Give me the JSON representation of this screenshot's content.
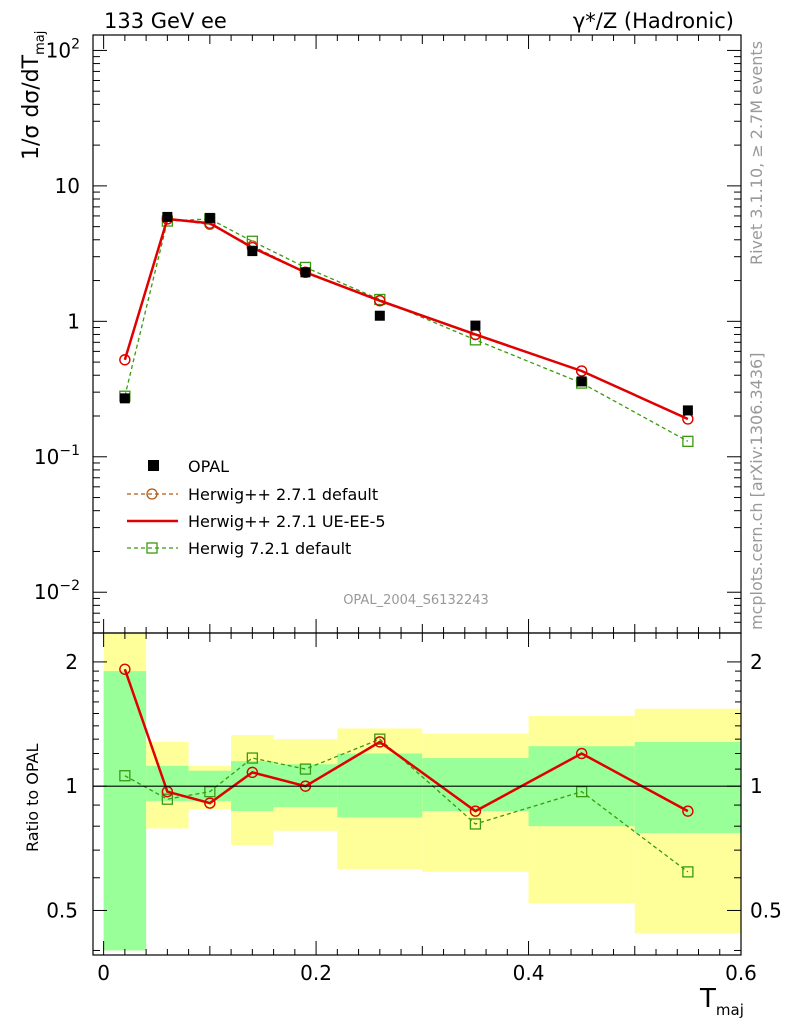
{
  "header": {
    "left": "133 GeV ee",
    "right": "γ*/Z (Hadronic)"
  },
  "side_text": {
    "top": "Rivet 3.1.10, ≥ 2.7M events",
    "bottom": "mcplots.cern.ch [arXiv:1306.3436]"
  },
  "watermark": "OPAL_2004_S6132243",
  "chart_data": {
    "type": "line",
    "x_label_main": "T",
    "x_label_sub": "maj",
    "y_label_main": "1/σ dσ/dT",
    "y_label_sub": "maj",
    "ratio_ylabel": "Ratio to OPAL",
    "xlim": [
      -0.01,
      0.6
    ],
    "x_ticks": [
      "0",
      "0.2",
      "0.4",
      "0.6"
    ],
    "main_yscale": "log",
    "main_ylim": [
      0.005,
      130
    ],
    "main_y_ticks": [
      "10",
      "1"
    ],
    "main_y_ticks_exp": [
      {
        "base": "10",
        "exp": "2"
      },
      {
        "base": "10",
        "exp": "−1"
      },
      {
        "base": "10",
        "exp": "−2"
      }
    ],
    "ratio_yscale": "log",
    "ratio_ylim": [
      0.39,
      2.35
    ],
    "ratio_y_ticks": [
      "2",
      "1",
      "0.5"
    ],
    "legend_position": "lower-left",
    "bins": [
      {
        "lo": 0.0,
        "hi": 0.04
      },
      {
        "lo": 0.04,
        "hi": 0.08
      },
      {
        "lo": 0.08,
        "hi": 0.12
      },
      {
        "lo": 0.12,
        "hi": 0.16
      },
      {
        "lo": 0.16,
        "hi": 0.22
      },
      {
        "lo": 0.22,
        "hi": 0.3
      },
      {
        "lo": 0.3,
        "hi": 0.4
      },
      {
        "lo": 0.4,
        "hi": 0.5
      },
      {
        "lo": 0.5,
        "hi": 0.6
      }
    ],
    "x": [
      0.02,
      0.06,
      0.1,
      0.14,
      0.19,
      0.26,
      0.35,
      0.45,
      0.55
    ],
    "series": [
      {
        "name": "OPAL",
        "style": "data",
        "color": "#000000",
        "values": [
          0.27,
          5.9,
          5.8,
          3.3,
          2.3,
          1.1,
          0.93,
          0.36,
          0.22
        ]
      },
      {
        "name": "Herwig++ 2.7.1 default",
        "style": "dashed-circle",
        "color": "#b05a14",
        "values": [
          0.52,
          5.7,
          5.2,
          3.6,
          2.3,
          1.42,
          0.8,
          0.43,
          0.19
        ],
        "ratio": [
          1.92,
          0.97,
          0.91,
          1.08,
          1.0,
          1.28,
          0.87,
          1.2,
          0.87
        ]
      },
      {
        "name": "Herwig++ 2.7.1 UE-EE-5",
        "style": "solid",
        "color": "#e00000",
        "values": [
          0.52,
          5.7,
          5.3,
          3.5,
          2.3,
          1.42,
          0.8,
          0.43,
          0.19
        ],
        "ratio": [
          1.92,
          0.97,
          0.91,
          1.08,
          1.0,
          1.28,
          0.87,
          1.2,
          0.87
        ]
      },
      {
        "name": "Herwig 7.2.1 default",
        "style": "dashed-square",
        "color": "#3a9a10",
        "values": [
          0.28,
          5.5,
          5.7,
          3.9,
          2.5,
          1.45,
          0.73,
          0.35,
          0.13
        ],
        "ratio": [
          1.06,
          0.93,
          0.97,
          1.17,
          1.1,
          1.3,
          0.81,
          0.97,
          0.62
        ]
      }
    ],
    "uncertainty_bands": {
      "stat_color": "#99ff99",
      "total_color": "#ffff99",
      "stat": [
        [
          0.4,
          1.9
        ],
        [
          0.92,
          1.12
        ],
        [
          0.92,
          1.09
        ],
        [
          0.87,
          1.15
        ],
        [
          0.89,
          1.13
        ],
        [
          0.84,
          1.2
        ],
        [
          0.87,
          1.17
        ],
        [
          0.8,
          1.25
        ],
        [
          0.77,
          1.28
        ]
      ],
      "total": [
        [
          0.4,
          2.5
        ],
        [
          0.79,
          1.28
        ],
        [
          0.88,
          1.12
        ],
        [
          0.72,
          1.33
        ],
        [
          0.78,
          1.3
        ],
        [
          0.63,
          1.38
        ],
        [
          0.62,
          1.34
        ],
        [
          0.52,
          1.48
        ],
        [
          0.44,
          1.54
        ]
      ]
    }
  }
}
